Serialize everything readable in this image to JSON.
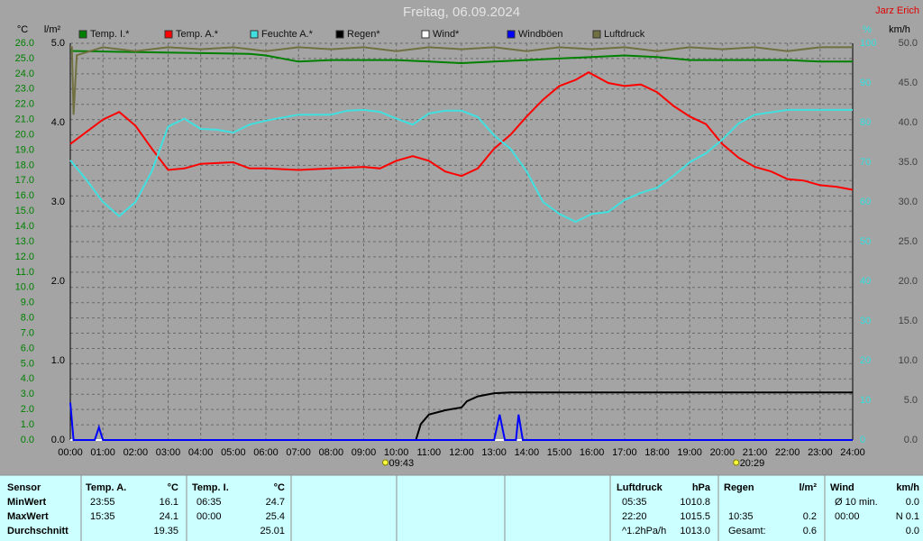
{
  "chart_data": {
    "type": "line",
    "title": "Freitag, 06.09.2024",
    "author": "Jarz Erich",
    "ylabel": "°C",
    "y2label": "%",
    "y3label": "l/m²",
    "y4label": "km/h",
    "axis_colors": {
      "y": "#008000",
      "y2": "#33e0e0",
      "y3": "#000000",
      "y4": "#404040"
    },
    "xlim": [
      0,
      24
    ],
    "xticks": [
      {
        "value": 0,
        "label": "00:00"
      },
      {
        "value": 1,
        "label": "01:00"
      },
      {
        "value": 2,
        "label": "02:00"
      },
      {
        "value": 3,
        "label": "03:00"
      },
      {
        "value": 4,
        "label": "04:00"
      },
      {
        "value": 5,
        "label": "05:00"
      },
      {
        "value": 6,
        "label": "06:00"
      },
      {
        "value": 7,
        "label": "07:00"
      },
      {
        "value": 8,
        "label": "08:00"
      },
      {
        "value": 9,
        "label": "09:00"
      },
      {
        "value": 10,
        "label": "10:00"
      },
      {
        "value": 11,
        "label": "11:00"
      },
      {
        "value": 12,
        "label": "12:00"
      },
      {
        "value": 13,
        "label": "13:00"
      },
      {
        "value": 14,
        "label": "14:00"
      },
      {
        "value": 15,
        "label": "15:00"
      },
      {
        "value": 16,
        "label": "16:00"
      },
      {
        "value": 17,
        "label": "17:00"
      },
      {
        "value": 18,
        "label": "18:00"
      },
      {
        "value": 19,
        "label": "19:00"
      },
      {
        "value": 20,
        "label": "20:00"
      },
      {
        "value": 21,
        "label": "21:00"
      },
      {
        "value": 22,
        "label": "22:00"
      },
      {
        "value": 23,
        "label": "23:00"
      },
      {
        "value": 24,
        "label": "24:00"
      }
    ],
    "ylim": [
      0,
      26
    ],
    "yticks": [
      {
        "value": 0,
        "label": "0.0"
      },
      {
        "value": 1,
        "label": "1.0"
      },
      {
        "value": 2,
        "label": "2.0"
      },
      {
        "value": 3,
        "label": "3.0"
      },
      {
        "value": 4,
        "label": "4.0"
      },
      {
        "value": 5,
        "label": "5.0"
      },
      {
        "value": 6,
        "label": "6.0"
      },
      {
        "value": 7,
        "label": "7.0"
      },
      {
        "value": 8,
        "label": "8.0"
      },
      {
        "value": 9,
        "label": "9.0"
      },
      {
        "value": 10,
        "label": "10.0"
      },
      {
        "value": 11,
        "label": "11.0"
      },
      {
        "value": 12,
        "label": "12.0"
      },
      {
        "value": 13,
        "label": "13.0"
      },
      {
        "value": 14,
        "label": "14.0"
      },
      {
        "value": 15,
        "label": "15.0"
      },
      {
        "value": 16,
        "label": "16.0"
      },
      {
        "value": 17,
        "label": "17.0"
      },
      {
        "value": 18,
        "label": "18.0"
      },
      {
        "value": 19,
        "label": "19.0"
      },
      {
        "value": 20,
        "label": "20.0"
      },
      {
        "value": 21,
        "label": "21.0"
      },
      {
        "value": 22,
        "label": "22.0"
      },
      {
        "value": 23,
        "label": "23.0"
      },
      {
        "value": 24,
        "label": "24.0"
      },
      {
        "value": 25,
        "label": "25.0"
      },
      {
        "value": 26,
        "label": "26.0"
      }
    ],
    "y2lim": [
      0,
      100
    ],
    "y2ticks": [
      0,
      10,
      20,
      30,
      40,
      50,
      60,
      70,
      80,
      90,
      100
    ],
    "y3lim": [
      0,
      5
    ],
    "y3ticks": [
      {
        "value": 0,
        "label": "0.0"
      },
      {
        "value": 1,
        "label": "1.0"
      },
      {
        "value": 2,
        "label": "2.0"
      },
      {
        "value": 3,
        "label": "3.0"
      },
      {
        "value": 4,
        "label": "4.0"
      },
      {
        "value": 5,
        "label": "5.0"
      }
    ],
    "y4lim": [
      0,
      50
    ],
    "y4ticks": [
      {
        "value": 0,
        "label": "0.0"
      },
      {
        "value": 5,
        "label": "5.0"
      },
      {
        "value": 10,
        "label": "10.0"
      },
      {
        "value": 15,
        "label": "15.0"
      },
      {
        "value": 20,
        "label": "20.0"
      },
      {
        "value": 25,
        "label": "25.0"
      },
      {
        "value": 30,
        "label": "30.0"
      },
      {
        "value": 35,
        "label": "35.0"
      },
      {
        "value": 40,
        "label": "40.0"
      },
      {
        "value": 45,
        "label": "45.0"
      },
      {
        "value": 50,
        "label": "50.0"
      }
    ],
    "grid": true,
    "sun_times": [
      {
        "x": 9.72,
        "label": "09:43"
      },
      {
        "x": 20.48,
        "label": "20:29"
      }
    ],
    "series": [
      {
        "name": "Temp. I.*",
        "color": "#008000",
        "axis": "y",
        "x": [
          0,
          5.5,
          6,
          7,
          8,
          10,
          11,
          12,
          13,
          14,
          15,
          16,
          17,
          18,
          19,
          20,
          21,
          22,
          23,
          24
        ],
        "values": [
          25.5,
          25.3,
          25.2,
          24.8,
          24.9,
          24.9,
          24.8,
          24.7,
          24.8,
          24.9,
          25.0,
          25.1,
          25.2,
          25.1,
          24.9,
          24.9,
          24.9,
          24.9,
          24.8,
          24.8
        ]
      },
      {
        "name": "Temp. A.*",
        "color": "#ff0000",
        "axis": "y",
        "x": [
          0,
          1,
          1.5,
          2,
          2.5,
          3,
          3.5,
          4,
          5,
          5.5,
          6,
          7,
          8,
          9,
          9.5,
          10,
          10.5,
          11,
          11.5,
          12,
          12.5,
          13,
          13.5,
          14,
          14.5,
          15,
          15.5,
          15.9,
          16.5,
          17,
          17.5,
          18,
          18.5,
          19,
          19.5,
          20,
          20.5,
          21,
          21.5,
          22,
          22.5,
          23,
          23.5,
          24
        ],
        "values": [
          19.4,
          21.0,
          21.5,
          20.6,
          19.1,
          17.7,
          17.8,
          18.1,
          18.2,
          17.8,
          17.8,
          17.7,
          17.8,
          17.9,
          17.8,
          18.3,
          18.6,
          18.3,
          17.6,
          17.3,
          17.8,
          19.1,
          20.0,
          21.2,
          22.3,
          23.2,
          23.6,
          24.1,
          23.4,
          23.2,
          23.3,
          22.8,
          21.9,
          21.2,
          20.7,
          19.4,
          18.5,
          17.9,
          17.6,
          17.1,
          17.0,
          16.7,
          16.6,
          16.4
        ]
      },
      {
        "name": "Feuchte A.*",
        "color": "#40e0e0",
        "axis": "y2",
        "x": [
          0,
          0.5,
          1,
          1.5,
          2,
          2.5,
          3,
          3.5,
          4,
          4.5,
          5,
          5.5,
          6,
          7,
          8,
          8.5,
          9,
          9.5,
          10,
          10.5,
          11,
          11.5,
          12,
          12.5,
          13,
          13.5,
          14,
          14.5,
          15,
          15.5,
          16,
          16.5,
          17,
          17.5,
          18,
          18.5,
          19,
          19.5,
          20,
          20.5,
          21,
          22,
          23,
          24
        ],
        "values": [
          70.5,
          65.5,
          60,
          56.4,
          60,
          67.7,
          79,
          81,
          78.4,
          78.2,
          77.5,
          79.5,
          80.5,
          82,
          82,
          83,
          83.2,
          82.7,
          81,
          79.5,
          82.3,
          83,
          83,
          81.4,
          76.8,
          73.4,
          67.7,
          60,
          57,
          55,
          57,
          57.5,
          60.5,
          62.3,
          63.6,
          66.6,
          70,
          72.3,
          75.7,
          79.8,
          82,
          83.2,
          83.2,
          83.2
        ]
      },
      {
        "name": "Regen*",
        "color": "#000000",
        "axis": "y3",
        "x": [
          0,
          10.6,
          10.75,
          11,
          11.5,
          12,
          12.17,
          12.5,
          13,
          13.5,
          24
        ],
        "values": [
          0,
          0,
          0.2,
          0.32,
          0.375,
          0.41,
          0.49,
          0.55,
          0.59,
          0.6,
          0.6
        ]
      },
      {
        "name": "Wind*",
        "color": "#ffffff",
        "axis": "y4",
        "x": [
          0,
          24
        ],
        "values": [
          0,
          0
        ]
      },
      {
        "name": "Windböen",
        "color": "#0000ff",
        "axis": "y4",
        "x": [
          0,
          0.1,
          0.75,
          0.88,
          1.0,
          13.0,
          13.17,
          13.33,
          13.67,
          13.75,
          13.88,
          24
        ],
        "values": [
          4.7,
          0,
          0,
          1.6,
          0,
          0,
          3.2,
          0,
          0,
          3.2,
          0,
          0
        ]
      },
      {
        "name": "Luftdruck",
        "color": "#707040",
        "axis": "y2",
        "x": [
          0,
          0.05,
          0.1,
          0.2,
          1,
          2,
          3,
          4,
          5,
          6,
          7,
          8,
          9,
          10,
          11,
          12,
          13,
          14,
          15,
          16,
          17,
          18,
          19,
          20,
          21,
          22,
          23,
          24
        ],
        "values": [
          99,
          99,
          82,
          97,
          99,
          98,
          99,
          98.5,
          99,
          98,
          99,
          98.5,
          99,
          98,
          99,
          98.5,
          99,
          98,
          99,
          98.5,
          99,
          98,
          99,
          98.5,
          99,
          98,
          99,
          99
        ]
      }
    ]
  },
  "table": {
    "header": [
      "Sensor",
      "Temp. A.",
      "°C",
      "Temp. I.",
      "°C",
      "Luftdruck",
      "hPa",
      "Regen",
      "l/m²",
      "Wind",
      "km/h"
    ],
    "rows": [
      [
        "MinWert",
        "23:55",
        "16.1",
        "06:35",
        "24.7",
        "05:35",
        "1010.8",
        null,
        null,
        "Ø 10 min.",
        "0.0"
      ],
      [
        "MaxWert",
        "15:35",
        "24.1",
        "00:00",
        "25.4",
        "22:20",
        "1015.5",
        "10:35",
        "0.2",
        "00:00",
        "N 0.1"
      ],
      [
        "Durchschnitt",
        null,
        "19.35",
        null,
        "25.01",
        "^1.2hPa/h",
        "1013.0",
        "Gesamt:",
        "0.6",
        null,
        "0.0"
      ]
    ]
  }
}
